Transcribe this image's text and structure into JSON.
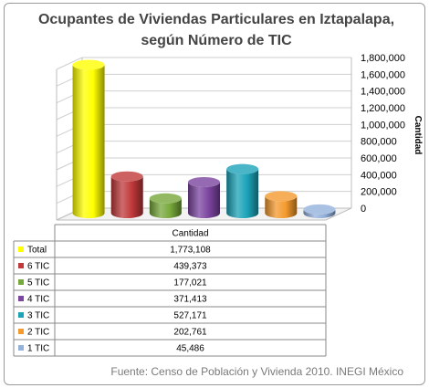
{
  "chart_data": {
    "type": "bar",
    "title": [
      "Ocupantes de Viviendas Particulares en Iztapalapa,",
      "según Número de TIC"
    ],
    "ylabel": "Cantidad",
    "ylim": [
      0,
      1800000
    ],
    "yticks": [
      "0",
      "200,000",
      "400,000",
      "600,000",
      "800,000",
      "1,000,000",
      "1,200,000",
      "1,400,000",
      "1,600,000",
      "1,800,000"
    ],
    "grid": true,
    "categories": [
      "Total",
      "6 TIC",
      "5 TIC",
      "4 TIC",
      "3 TIC",
      "2 TIC",
      "1 TIC"
    ],
    "values": [
      1773108,
      439373,
      177021,
      371413,
      527171,
      202761,
      45486
    ],
    "colors": [
      "#FFFF00",
      "#C0393B",
      "#77A83B",
      "#7B45A0",
      "#1BA3B8",
      "#F59A2E",
      "#94B1DC"
    ],
    "table": {
      "header": "Cantidad",
      "values": [
        "1,773,108",
        "439,373",
        "177,021",
        "371,413",
        "527,171",
        "202,761",
        "45,486"
      ]
    },
    "source": "Fuente: Censo de Población y Vivienda 2010. INEGI México"
  }
}
